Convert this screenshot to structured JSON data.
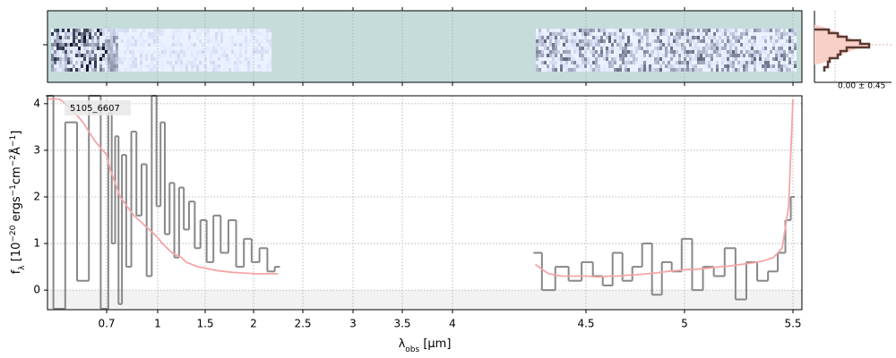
{
  "chart_data": {
    "type": "line",
    "annotation": "5105_6607",
    "side_label": "0.00 ± 0.45",
    "xlabel": [
      "λ",
      "obs",
      " [μm]"
    ],
    "ylabel": [
      "f",
      "λ",
      " [10",
      "−20",
      " ergs",
      "−1",
      "cm",
      "−2",
      "Å",
      "−1",
      "]"
    ],
    "x": [
      0.6,
      0.62,
      0.64,
      0.66,
      0.68,
      0.7,
      0.72,
      0.74,
      0.76,
      0.78,
      0.8,
      0.83,
      0.86,
      0.89,
      0.92,
      0.95,
      0.98,
      1.01,
      1.05,
      1.1,
      1.15,
      1.2,
      1.25,
      1.3,
      1.36,
      1.42,
      1.48,
      1.55,
      1.62,
      1.7,
      1.78,
      1.86,
      1.94,
      2.02,
      2.1,
      2.18,
      2.25,
      3.0,
      4.31,
      4.36,
      4.41,
      4.46,
      4.51,
      4.56,
      4.61,
      4.66,
      4.71,
      4.76,
      4.81,
      4.86,
      4.91,
      4.96,
      5.01,
      5.06,
      5.11,
      5.16,
      5.21,
      5.26,
      5.31,
      5.36,
      5.41,
      5.45,
      5.48,
      5.5
    ],
    "series": [
      {
        "color": "#888888",
        "style": "step",
        "values": [
          4.2,
          -0.4,
          3.6,
          0.2,
          4.2,
          -0.4,
          3.8,
          1.0,
          3.3,
          -0.3,
          2.9,
          0.5,
          3.4,
          1.6,
          2.7,
          0.3,
          4.2,
          1.8,
          3.6,
          1.2,
          2.3,
          0.7,
          2.2,
          1.3,
          1.9,
          0.9,
          1.5,
          0.6,
          1.6,
          0.8,
          1.5,
          0.5,
          1.1,
          0.6,
          0.9,
          0.4,
          0.5,
          null,
          0.8,
          0.0,
          0.5,
          0.2,
          0.6,
          0.3,
          0.1,
          0.8,
          0.2,
          0.5,
          1.0,
          -0.1,
          0.6,
          0.4,
          1.1,
          0.0,
          0.5,
          0.3,
          0.9,
          -0.2,
          0.6,
          0.2,
          0.4,
          0.8,
          1.5,
          2.0
        ]
      },
      {
        "color": "#f4a6a6",
        "style": "line",
        "values": [
          4.1,
          4.1,
          3.9,
          3.6,
          3.2,
          2.9,
          2.6,
          2.4,
          2.2,
          2.0,
          1.9,
          1.75,
          1.6,
          1.5,
          1.4,
          1.3,
          1.2,
          1.1,
          1.0,
          0.9,
          0.8,
          0.75,
          0.7,
          0.6,
          0.55,
          0.5,
          0.48,
          0.45,
          0.42,
          0.4,
          0.38,
          0.37,
          0.36,
          0.35,
          0.35,
          0.35,
          0.35,
          null,
          0.55,
          0.35,
          0.3,
          0.3,
          0.3,
          0.28,
          0.3,
          0.3,
          0.32,
          0.33,
          0.35,
          0.37,
          0.4,
          0.42,
          0.44,
          0.45,
          0.47,
          0.5,
          0.52,
          0.55,
          0.58,
          0.62,
          0.7,
          0.9,
          1.8,
          4.1
        ]
      }
    ],
    "xlim": [
      0.6,
      5.54
    ],
    "xticks": [
      0.7,
      1.0,
      1.5,
      2.0,
      2.5,
      3.0,
      3.5,
      4.0,
      4.5,
      5.0,
      5.5
    ],
    "ylim": [
      -0.42,
      4.17
    ],
    "yticks": [
      0,
      1,
      2,
      3,
      4
    ],
    "grid": true
  }
}
